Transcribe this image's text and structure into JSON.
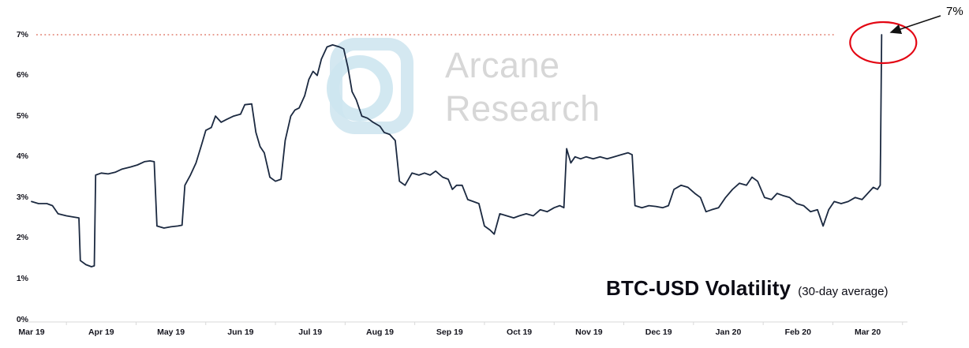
{
  "watermark": {
    "line1": "Arcane",
    "line2": "Research"
  },
  "annotation_label": "7%",
  "chart_data": {
    "type": "line",
    "title": "BTC-USD Volatility",
    "subtitle": "(30-day average)",
    "ylim": [
      0,
      7
    ],
    "ytick_labels": [
      "0%",
      "1%",
      "2%",
      "3%",
      "4%",
      "5%",
      "6%",
      "7%"
    ],
    "xtick_labels": [
      "Mar 19",
      "Apr 19",
      "May 19",
      "Jun 19",
      "Jul 19",
      "Aug 19",
      "Sep 19",
      "Oct 19",
      "Nov 19",
      "Dec 19",
      "Jan 20",
      "Feb 20",
      "Mar 20"
    ],
    "x_unit": "months since Mar 2019",
    "grid": false,
    "legend": false,
    "reference_line": {
      "value": 7,
      "color": "#d9604d",
      "style": "dotted"
    },
    "annotation": {
      "label": "7%",
      "x": 12.2,
      "value": 7,
      "ellipse_color": "#e30613",
      "arrow_color": "#111111"
    },
    "axis_color": "#d9d9d9",
    "series": [
      {
        "name": "BTC-USD Volatility (30-day average)",
        "color": "#1b2940",
        "points": [
          [
            0,
            2.9
          ],
          [
            0.1,
            2.85
          ],
          [
            0.22,
            2.85
          ],
          [
            0.3,
            2.8
          ],
          [
            0.38,
            2.6
          ],
          [
            0.5,
            2.55
          ],
          [
            0.6,
            2.52
          ],
          [
            0.68,
            2.5
          ],
          [
            0.7,
            1.45
          ],
          [
            0.78,
            1.35
          ],
          [
            0.86,
            1.3
          ],
          [
            0.9,
            1.32
          ],
          [
            0.92,
            3.55
          ],
          [
            1.0,
            3.6
          ],
          [
            1.1,
            3.58
          ],
          [
            1.2,
            3.62
          ],
          [
            1.3,
            3.7
          ],
          [
            1.42,
            3.75
          ],
          [
            1.52,
            3.8
          ],
          [
            1.62,
            3.88
          ],
          [
            1.7,
            3.9
          ],
          [
            1.76,
            3.88
          ],
          [
            1.8,
            2.3
          ],
          [
            1.9,
            2.25
          ],
          [
            2.0,
            2.28
          ],
          [
            2.1,
            2.3
          ],
          [
            2.16,
            2.32
          ],
          [
            2.2,
            3.3
          ],
          [
            2.28,
            3.55
          ],
          [
            2.36,
            3.85
          ],
          [
            2.44,
            4.3
          ],
          [
            2.5,
            4.65
          ],
          [
            2.58,
            4.72
          ],
          [
            2.64,
            5.0
          ],
          [
            2.72,
            4.85
          ],
          [
            2.8,
            4.92
          ],
          [
            2.9,
            5.0
          ],
          [
            3.0,
            5.05
          ],
          [
            3.06,
            5.28
          ],
          [
            3.16,
            5.3
          ],
          [
            3.22,
            4.6
          ],
          [
            3.28,
            4.25
          ],
          [
            3.34,
            4.1
          ],
          [
            3.42,
            3.5
          ],
          [
            3.5,
            3.4
          ],
          [
            3.58,
            3.45
          ],
          [
            3.64,
            4.4
          ],
          [
            3.72,
            5.0
          ],
          [
            3.78,
            5.15
          ],
          [
            3.84,
            5.2
          ],
          [
            3.92,
            5.5
          ],
          [
            3.98,
            5.9
          ],
          [
            4.04,
            6.1
          ],
          [
            4.1,
            6.0
          ],
          [
            4.16,
            6.4
          ],
          [
            4.24,
            6.7
          ],
          [
            4.32,
            6.75
          ],
          [
            4.42,
            6.7
          ],
          [
            4.48,
            6.65
          ],
          [
            4.54,
            6.2
          ],
          [
            4.6,
            5.6
          ],
          [
            4.66,
            5.4
          ],
          [
            4.74,
            5.0
          ],
          [
            4.82,
            4.95
          ],
          [
            4.9,
            4.85
          ],
          [
            5.0,
            4.75
          ],
          [
            5.06,
            4.6
          ],
          [
            5.14,
            4.55
          ],
          [
            5.22,
            4.4
          ],
          [
            5.28,
            3.4
          ],
          [
            5.36,
            3.3
          ],
          [
            5.46,
            3.6
          ],
          [
            5.56,
            3.55
          ],
          [
            5.64,
            3.6
          ],
          [
            5.72,
            3.55
          ],
          [
            5.8,
            3.65
          ],
          [
            5.9,
            3.5
          ],
          [
            5.98,
            3.45
          ],
          [
            6.04,
            3.2
          ],
          [
            6.1,
            3.3
          ],
          [
            6.18,
            3.3
          ],
          [
            6.26,
            2.95
          ],
          [
            6.34,
            2.9
          ],
          [
            6.42,
            2.85
          ],
          [
            6.5,
            2.3
          ],
          [
            6.58,
            2.2
          ],
          [
            6.64,
            2.1
          ],
          [
            6.72,
            2.6
          ],
          [
            6.82,
            2.55
          ],
          [
            6.92,
            2.5
          ],
          [
            7.0,
            2.55
          ],
          [
            7.1,
            2.6
          ],
          [
            7.2,
            2.55
          ],
          [
            7.3,
            2.7
          ],
          [
            7.4,
            2.65
          ],
          [
            7.5,
            2.75
          ],
          [
            7.58,
            2.8
          ],
          [
            7.64,
            2.75
          ],
          [
            7.68,
            4.2
          ],
          [
            7.74,
            3.85
          ],
          [
            7.8,
            4.0
          ],
          [
            7.88,
            3.95
          ],
          [
            7.96,
            4.0
          ],
          [
            8.06,
            3.95
          ],
          [
            8.16,
            4.0
          ],
          [
            8.26,
            3.95
          ],
          [
            8.36,
            4.0
          ],
          [
            8.46,
            4.05
          ],
          [
            8.56,
            4.1
          ],
          [
            8.62,
            4.05
          ],
          [
            8.66,
            2.8
          ],
          [
            8.76,
            2.75
          ],
          [
            8.86,
            2.8
          ],
          [
            8.96,
            2.78
          ],
          [
            9.06,
            2.75
          ],
          [
            9.14,
            2.8
          ],
          [
            9.22,
            3.2
          ],
          [
            9.32,
            3.3
          ],
          [
            9.42,
            3.25
          ],
          [
            9.52,
            3.1
          ],
          [
            9.6,
            3.0
          ],
          [
            9.68,
            2.65
          ],
          [
            9.76,
            2.7
          ],
          [
            9.86,
            2.75
          ],
          [
            9.96,
            3.0
          ],
          [
            10.06,
            3.2
          ],
          [
            10.16,
            3.35
          ],
          [
            10.26,
            3.3
          ],
          [
            10.34,
            3.5
          ],
          [
            10.42,
            3.4
          ],
          [
            10.52,
            3.0
          ],
          [
            10.62,
            2.95
          ],
          [
            10.7,
            3.1
          ],
          [
            10.78,
            3.05
          ],
          [
            10.88,
            3.0
          ],
          [
            10.98,
            2.85
          ],
          [
            11.08,
            2.8
          ],
          [
            11.18,
            2.65
          ],
          [
            11.28,
            2.7
          ],
          [
            11.36,
            2.3
          ],
          [
            11.44,
            2.7
          ],
          [
            11.52,
            2.9
          ],
          [
            11.62,
            2.85
          ],
          [
            11.72,
            2.9
          ],
          [
            11.82,
            3.0
          ],
          [
            11.92,
            2.95
          ],
          [
            12.0,
            3.1
          ],
          [
            12.08,
            3.25
          ],
          [
            12.14,
            3.2
          ],
          [
            12.18,
            3.3
          ],
          [
            12.2,
            7.0
          ]
        ]
      }
    ]
  }
}
